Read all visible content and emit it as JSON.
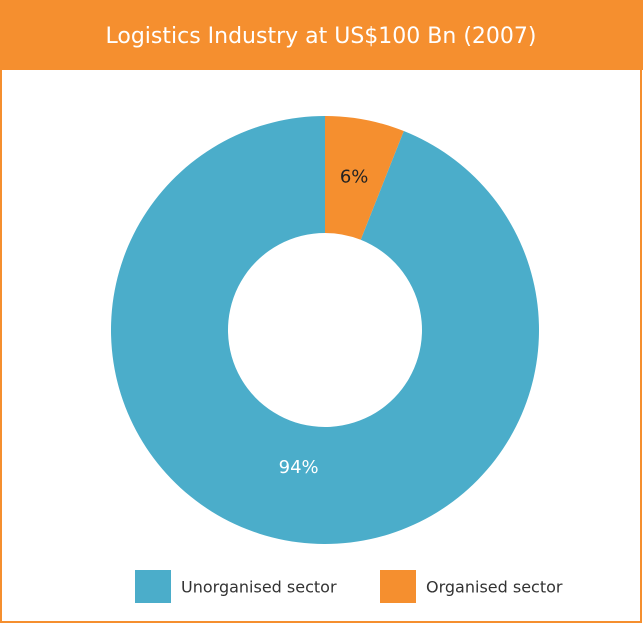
{
  "chart_data": {
    "type": "pie",
    "title": "Logistics Industry at US$100 Bn (2007)",
    "categories": [
      "Unorganised sector",
      "Organised sector"
    ],
    "values": [
      94,
      6
    ],
    "value_labels": [
      "94%",
      "6%"
    ],
    "colors": [
      "#4badca",
      "#f58f2f"
    ],
    "donut": true
  }
}
